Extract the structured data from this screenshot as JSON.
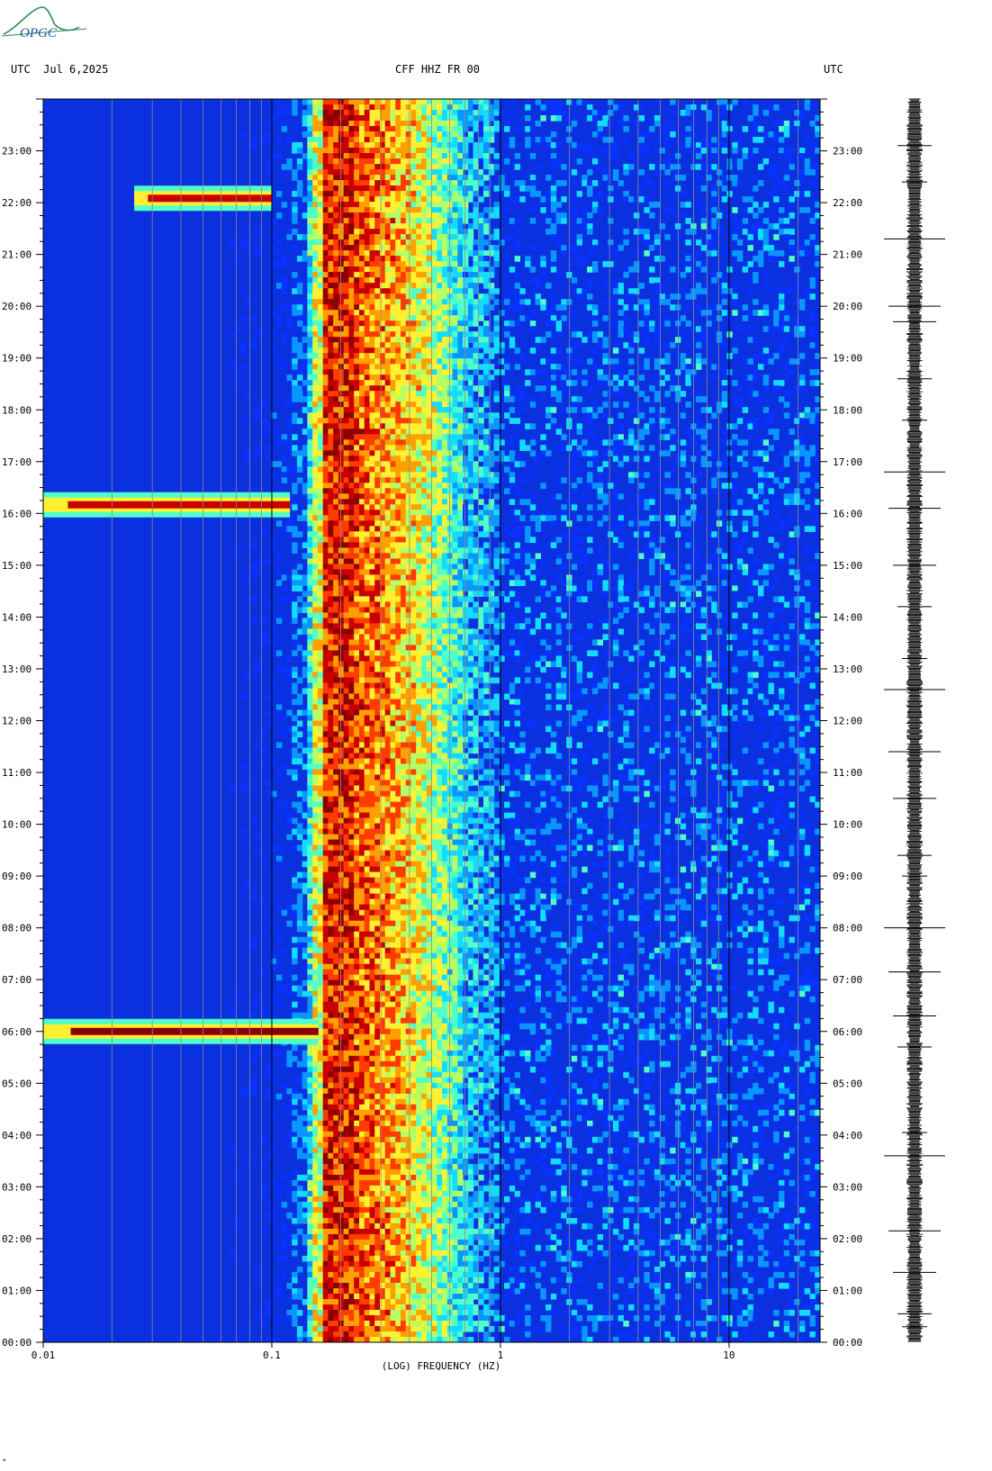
{
  "header": {
    "left": "UTC  Jul 6,2025",
    "center": "CFF HHZ FR 00",
    "right": "UTC"
  },
  "logo": {
    "text": "OPGC",
    "color": "#2e8b57",
    "text_color": "#1f4fa0"
  },
  "corner_mark": "\"",
  "chart_data": {
    "type": "heatmap",
    "title": "CFF HHZ FR 00",
    "date": "Jul 6,2025",
    "xlabel": "(LOG) FREQUENCY (HZ)",
    "ylabel": "UTC",
    "x_scale": "log",
    "xlim": [
      0.01,
      25
    ],
    "x_ticks": [
      {
        "value": 0.01,
        "label": "0.01"
      },
      {
        "value": 0.1,
        "label": "0.1"
      },
      {
        "value": 1,
        "label": "1"
      },
      {
        "value": 10,
        "label": "10"
      }
    ],
    "ylim_hours": [
      0,
      24
    ],
    "y_ticks": [
      "00:00",
      "01:00",
      "02:00",
      "03:00",
      "04:00",
      "05:00",
      "06:00",
      "07:00",
      "08:00",
      "09:00",
      "10:00",
      "11:00",
      "12:00",
      "13:00",
      "14:00",
      "15:00",
      "16:00",
      "17:00",
      "18:00",
      "19:00",
      "20:00",
      "21:00",
      "22:00",
      "23:00"
    ],
    "colormap": [
      "#0000c8",
      "#0a32ff",
      "#0a96ff",
      "#14dcff",
      "#50ffc8",
      "#b4ff64",
      "#fff032",
      "#ffa000",
      "#ff3c00",
      "#c80000",
      "#8c0000"
    ],
    "background_color": "#0a30e0",
    "microseism_band_hz": [
      0.15,
      0.7
    ],
    "microseism_peak_hz": [
      0.17,
      0.23
    ],
    "events": [
      {
        "time": "06:00",
        "fmin": 0.01,
        "fmax": 0.16,
        "intensity": "high"
      },
      {
        "time": "16:10",
        "fmin": 0.01,
        "fmax": 0.12,
        "intensity": "medium"
      },
      {
        "time": "22:05",
        "fmin": 0.025,
        "fmax": 0.1,
        "intensity": "medium"
      }
    ],
    "seismogram": "trace"
  }
}
